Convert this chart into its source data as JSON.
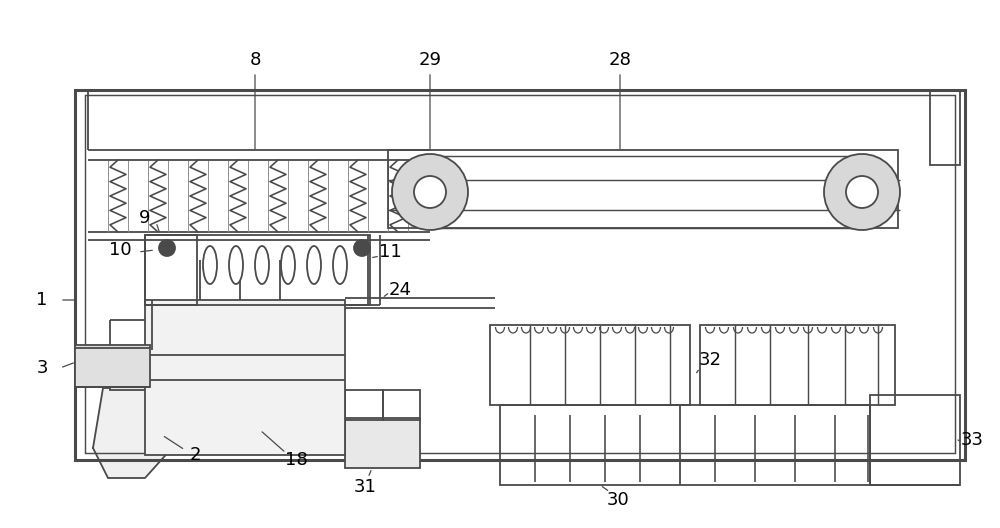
{
  "bg_color": "#ffffff",
  "lc": "#4a4a4a",
  "lw": 1.3,
  "tlw": 2.2,
  "fig_w": 10.0,
  "fig_h": 5.28
}
